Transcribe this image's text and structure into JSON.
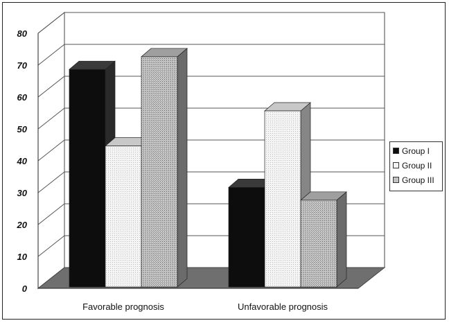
{
  "chart_data": {
    "type": "bar",
    "subtype": "3d-clustered-column",
    "categories": [
      "Favorable prognosis",
      "Unfavorable prognosis"
    ],
    "series": [
      {
        "name": "Group I",
        "values": [
          68,
          31
        ],
        "color": "#0d0d0d"
      },
      {
        "name": "Group II",
        "values": [
          44,
          55
        ],
        "color": "#f4f4f4"
      },
      {
        "name": "Group III",
        "values": [
          72,
          27
        ],
        "color": "#c2c2c2"
      }
    ],
    "yticks": [
      "0",
      "10",
      "20",
      "30",
      "40",
      "50",
      "60",
      "70",
      "80"
    ],
    "ylim": [
      0,
      80
    ],
    "grid": true,
    "legend_position": "right",
    "title": "",
    "xlabel": "",
    "ylabel": ""
  }
}
